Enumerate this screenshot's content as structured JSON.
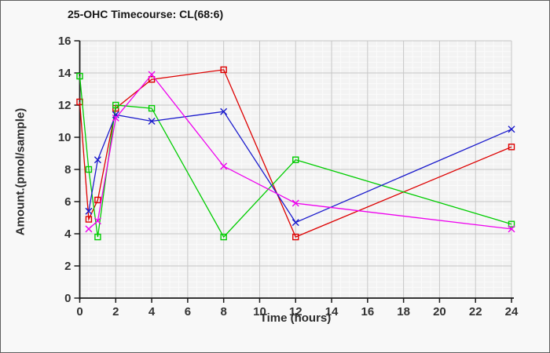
{
  "figure": {
    "background": "#f8f8f8",
    "border_color": "#5f5f5f"
  },
  "chart_data": {
    "type": "line",
    "title": "25-OHC Timecourse: CL(68:6)",
    "xlabel": "Time (hours)",
    "ylabel": "Amount.(pmol/sample)",
    "xlim": [
      0,
      24
    ],
    "ylim": [
      0,
      16
    ],
    "x_ticks": [
      0,
      2,
      4,
      6,
      8,
      10,
      12,
      14,
      16,
      18,
      20,
      22,
      24
    ],
    "y_ticks": [
      0,
      2,
      4,
      6,
      8,
      10,
      12,
      14,
      16
    ],
    "grid": true,
    "legend": null,
    "minor_grid": {
      "x_step": 0.5,
      "y_step": 0.333333
    },
    "x": [
      0,
      0.5,
      1,
      2,
      4,
      8,
      12,
      24
    ],
    "series": [
      {
        "name": "red-squares",
        "color": "#dd0000",
        "marker": "square",
        "values": [
          12.2,
          4.9,
          6.1,
          11.8,
          13.6,
          14.2,
          3.8,
          9.4
        ]
      },
      {
        "name": "green-squares",
        "color": "#00cc00",
        "marker": "square",
        "values": [
          13.8,
          8.0,
          3.8,
          12.0,
          11.8,
          3.8,
          8.6,
          4.6
        ]
      },
      {
        "name": "blue-x",
        "color": "#1a1acc",
        "marker": "x",
        "values": [
          null,
          5.4,
          8.6,
          11.4,
          11.0,
          11.6,
          4.7,
          10.5
        ]
      },
      {
        "name": "magenta-x",
        "color": "#ee00ee",
        "marker": "x",
        "values": [
          null,
          4.3,
          4.8,
          11.2,
          13.9,
          8.2,
          5.9,
          4.3
        ]
      }
    ],
    "styles": {
      "plot_bg": "#f3f3f3",
      "minor_grid_color": "#fbfbfb",
      "major_grid_color": "#c6c6c6",
      "axis_color": "#1a1a1a",
      "tick_label_color": "#333333"
    }
  }
}
